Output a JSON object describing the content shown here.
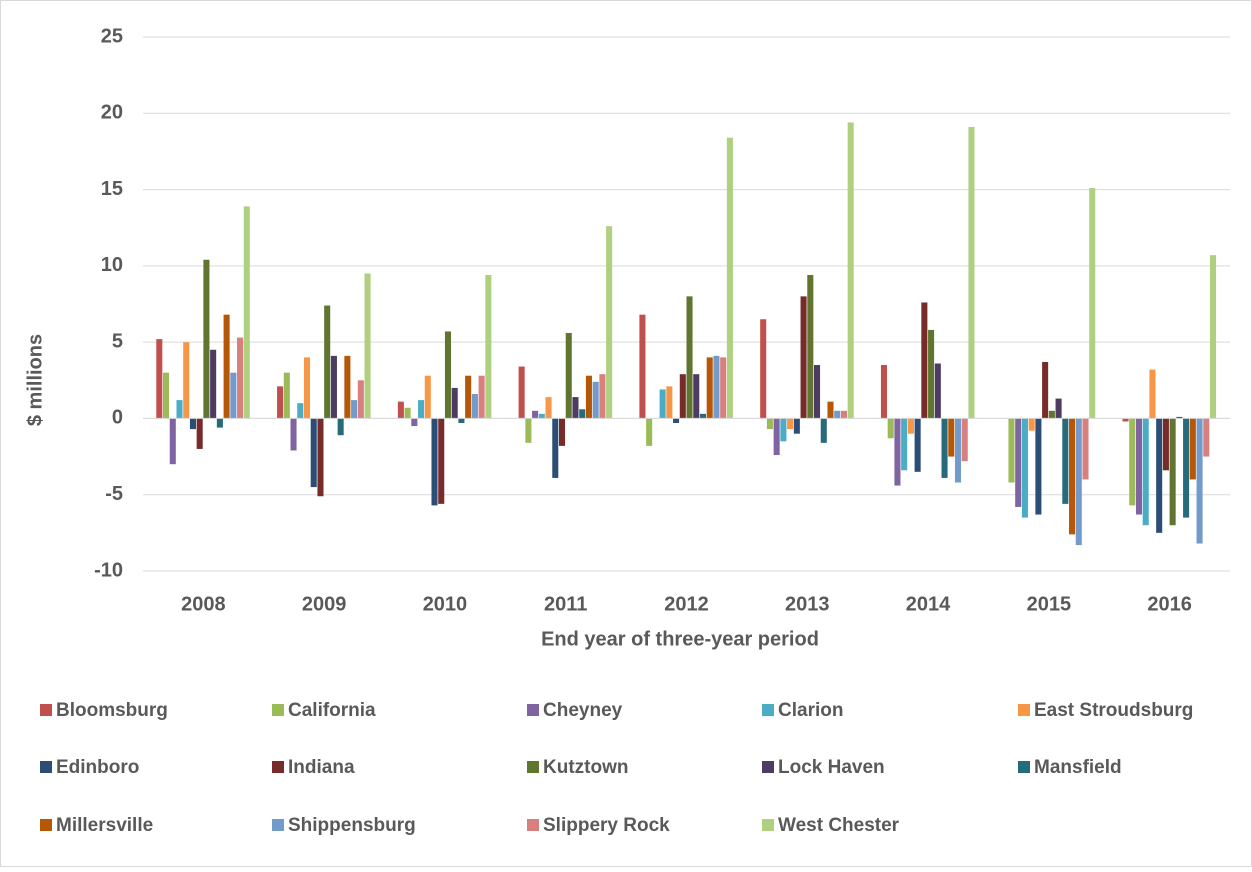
{
  "chart_data": {
    "type": "bar",
    "x_label": "End year of three-year period",
    "y_label": "$ millions",
    "categories": [
      "2008",
      "2009",
      "2010",
      "2011",
      "2012",
      "2013",
      "2014",
      "2015",
      "2016"
    ],
    "ylim": [
      -10,
      25
    ],
    "yticks": [
      -10,
      -5,
      0,
      5,
      10,
      15,
      20,
      25
    ],
    "grid": true,
    "legend": "bottom",
    "series": [
      {
        "name": "Bloomsburg",
        "color": "#c0504d",
        "values": [
          5.2,
          2.1,
          1.1,
          3.4,
          6.8,
          6.5,
          3.5,
          0,
          -0.2
        ]
      },
      {
        "name": "California",
        "color": "#9bbb59",
        "values": [
          3.0,
          3.0,
          0.7,
          -1.6,
          -1.8,
          -0.7,
          -1.3,
          -4.2,
          -5.7
        ]
      },
      {
        "name": "Cheyney",
        "color": "#8064a2",
        "values": [
          -3.0,
          -2.1,
          -0.5,
          0.5,
          0,
          -2.4,
          -4.4,
          -5.8,
          -6.3
        ]
      },
      {
        "name": "Clarion",
        "color": "#4bacc6",
        "values": [
          1.2,
          1.0,
          1.2,
          0.3,
          1.9,
          -1.5,
          -3.4,
          -6.5,
          -7.0
        ]
      },
      {
        "name": "East Stroudsburg",
        "color": "#f79646",
        "values": [
          5.0,
          4.0,
          2.8,
          1.4,
          2.1,
          -0.7,
          -1.0,
          -0.8,
          3.2
        ]
      },
      {
        "name": "Edinboro",
        "color": "#2c4d75",
        "values": [
          -0.7,
          -4.5,
          -5.7,
          -3.9,
          -0.3,
          -1.0,
          -3.5,
          -6.3,
          -7.5
        ]
      },
      {
        "name": "Indiana",
        "color": "#772c2a",
        "values": [
          -2.0,
          -5.1,
          -5.6,
          -1.8,
          2.9,
          8.0,
          7.6,
          3.7,
          -3.4
        ]
      },
      {
        "name": "Kutztown",
        "color": "#5f7530",
        "values": [
          10.4,
          7.4,
          5.7,
          5.6,
          8.0,
          9.4,
          5.8,
          0.5,
          -7.0
        ]
      },
      {
        "name": "Lock Haven",
        "color": "#4d3b62",
        "values": [
          4.5,
          4.1,
          2.0,
          1.4,
          2.9,
          3.5,
          3.6,
          1.3,
          0.1
        ]
      },
      {
        "name": "Mansfield",
        "color": "#276a7c",
        "values": [
          -0.6,
          -1.1,
          -0.3,
          0.6,
          0.3,
          -1.6,
          -3.9,
          -5.6,
          -6.5
        ]
      },
      {
        "name": "Millersville",
        "color": "#b65708",
        "values": [
          6.8,
          4.1,
          2.8,
          2.8,
          4.0,
          1.1,
          -2.5,
          -7.6,
          -4.0
        ]
      },
      {
        "name": "Shippensburg",
        "color": "#729aca",
        "values": [
          3.0,
          1.2,
          1.6,
          2.4,
          4.1,
          0.5,
          -4.2,
          -8.3,
          -8.2
        ]
      },
      {
        "name": "Slippery Rock",
        "color": "#d7807e",
        "values": [
          5.3,
          2.5,
          2.8,
          2.9,
          4.0,
          0.5,
          -2.8,
          -4.0,
          -2.5
        ]
      },
      {
        "name": "West Chester",
        "color": "#afd07f",
        "values": [
          13.9,
          9.5,
          9.4,
          12.6,
          18.4,
          19.4,
          19.1,
          15.1,
          10.7
        ]
      }
    ]
  }
}
